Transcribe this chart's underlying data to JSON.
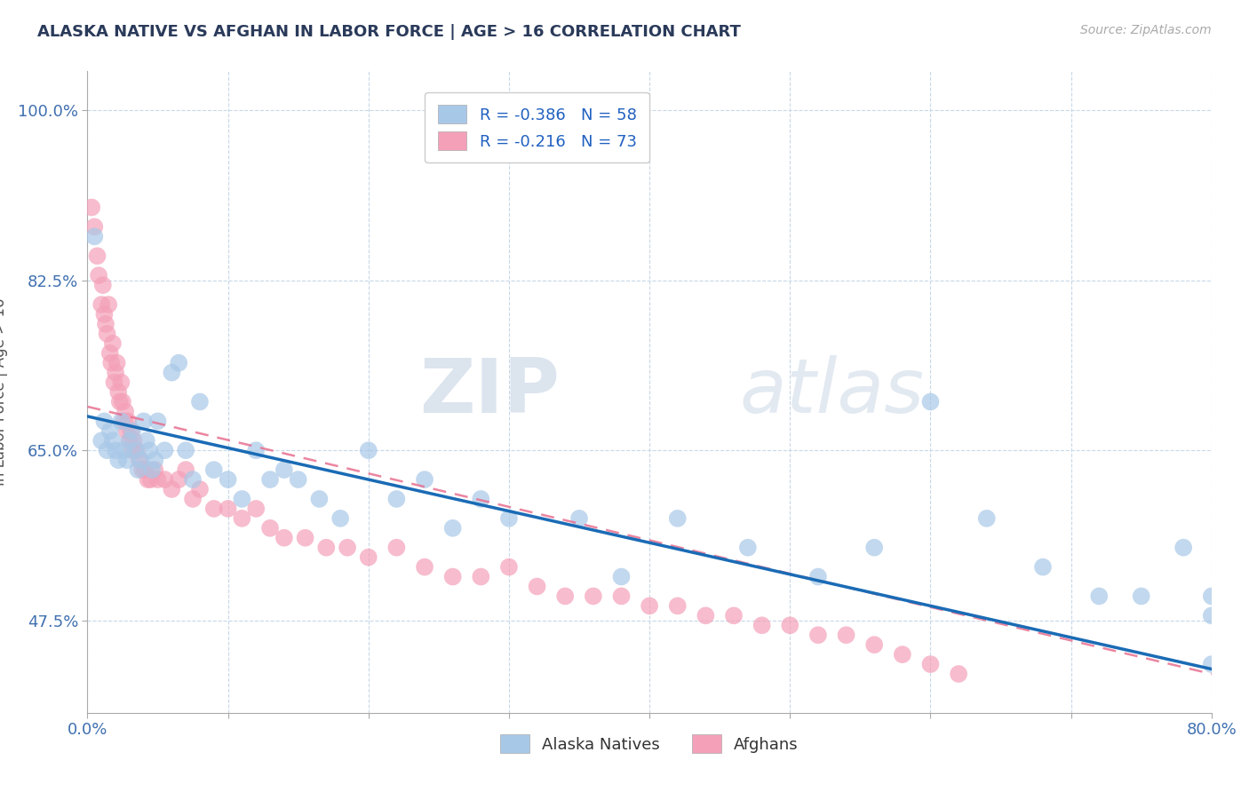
{
  "title": "ALASKA NATIVE VS AFGHAN IN LABOR FORCE | AGE > 16 CORRELATION CHART",
  "source": "Source: ZipAtlas.com",
  "ylabel": "In Labor Force | Age > 16",
  "xlim": [
    0.0,
    0.8
  ],
  "ylim": [
    0.38,
    1.04
  ],
  "xticks": [
    0.0,
    0.1,
    0.2,
    0.3,
    0.4,
    0.5,
    0.6,
    0.7,
    0.8
  ],
  "xticklabels": [
    "0.0%",
    "",
    "",
    "",
    "",
    "",
    "",
    "",
    "80.0%"
  ],
  "ytick_labels_shown": [
    "47.5%",
    "65.0%",
    "82.5%",
    "100.0%"
  ],
  "ytick_labels_pos": [
    0.475,
    0.65,
    0.825,
    1.0
  ],
  "alaska_color": "#a8c8e8",
  "afghan_color": "#f4a0b8",
  "alaska_line_color": "#1a6bb5",
  "afghan_line_color": "#e87090",
  "watermark_zip": "ZIP",
  "watermark_atlas": "atlas",
  "background_color": "#ffffff",
  "grid_color": "#c8d8e8",
  "alaska_scatter_x": [
    0.005,
    0.01,
    0.012,
    0.014,
    0.016,
    0.018,
    0.02,
    0.022,
    0.024,
    0.026,
    0.028,
    0.03,
    0.032,
    0.034,
    0.036,
    0.038,
    0.04,
    0.042,
    0.044,
    0.046,
    0.048,
    0.05,
    0.055,
    0.06,
    0.065,
    0.07,
    0.075,
    0.08,
    0.09,
    0.1,
    0.11,
    0.12,
    0.13,
    0.14,
    0.15,
    0.165,
    0.18,
    0.2,
    0.22,
    0.24,
    0.26,
    0.28,
    0.3,
    0.35,
    0.38,
    0.42,
    0.47,
    0.52,
    0.56,
    0.6,
    0.64,
    0.68,
    0.72,
    0.75,
    0.78,
    0.8,
    0.8,
    0.8
  ],
  "alaska_scatter_y": [
    0.87,
    0.66,
    0.68,
    0.65,
    0.67,
    0.66,
    0.65,
    0.64,
    0.68,
    0.65,
    0.64,
    0.66,
    0.67,
    0.65,
    0.63,
    0.64,
    0.68,
    0.66,
    0.65,
    0.63,
    0.64,
    0.68,
    0.65,
    0.73,
    0.74,
    0.65,
    0.62,
    0.7,
    0.63,
    0.62,
    0.6,
    0.65,
    0.62,
    0.63,
    0.62,
    0.6,
    0.58,
    0.65,
    0.6,
    0.62,
    0.57,
    0.6,
    0.58,
    0.58,
    0.52,
    0.58,
    0.55,
    0.52,
    0.55,
    0.7,
    0.58,
    0.53,
    0.5,
    0.5,
    0.55,
    0.43,
    0.5,
    0.48
  ],
  "afghan_scatter_x": [
    0.003,
    0.005,
    0.007,
    0.008,
    0.01,
    0.011,
    0.012,
    0.013,
    0.014,
    0.015,
    0.016,
    0.017,
    0.018,
    0.019,
    0.02,
    0.021,
    0.022,
    0.023,
    0.024,
    0.025,
    0.026,
    0.027,
    0.028,
    0.029,
    0.03,
    0.031,
    0.032,
    0.033,
    0.035,
    0.037,
    0.039,
    0.041,
    0.043,
    0.045,
    0.048,
    0.05,
    0.055,
    0.06,
    0.065,
    0.07,
    0.075,
    0.08,
    0.09,
    0.1,
    0.11,
    0.12,
    0.13,
    0.14,
    0.155,
    0.17,
    0.185,
    0.2,
    0.22,
    0.24,
    0.26,
    0.28,
    0.3,
    0.32,
    0.34,
    0.36,
    0.38,
    0.4,
    0.42,
    0.44,
    0.46,
    0.48,
    0.5,
    0.52,
    0.54,
    0.56,
    0.58,
    0.6,
    0.62
  ],
  "afghan_scatter_y": [
    0.9,
    0.88,
    0.85,
    0.83,
    0.8,
    0.82,
    0.79,
    0.78,
    0.77,
    0.8,
    0.75,
    0.74,
    0.76,
    0.72,
    0.73,
    0.74,
    0.71,
    0.7,
    0.72,
    0.7,
    0.68,
    0.69,
    0.67,
    0.68,
    0.66,
    0.67,
    0.65,
    0.66,
    0.65,
    0.64,
    0.63,
    0.63,
    0.62,
    0.62,
    0.63,
    0.62,
    0.62,
    0.61,
    0.62,
    0.63,
    0.6,
    0.61,
    0.59,
    0.59,
    0.58,
    0.59,
    0.57,
    0.56,
    0.56,
    0.55,
    0.55,
    0.54,
    0.55,
    0.53,
    0.52,
    0.52,
    0.53,
    0.51,
    0.5,
    0.5,
    0.5,
    0.49,
    0.49,
    0.48,
    0.48,
    0.47,
    0.47,
    0.46,
    0.46,
    0.45,
    0.44,
    0.43,
    0.42
  ],
  "alaska_line_x0": 0.0,
  "alaska_line_x1": 0.8,
  "alaska_line_y0": 0.685,
  "alaska_line_y1": 0.425,
  "afghan_line_x0": 0.0,
  "afghan_line_x1": 0.8,
  "afghan_line_y0": 0.695,
  "afghan_line_y1": 0.42
}
